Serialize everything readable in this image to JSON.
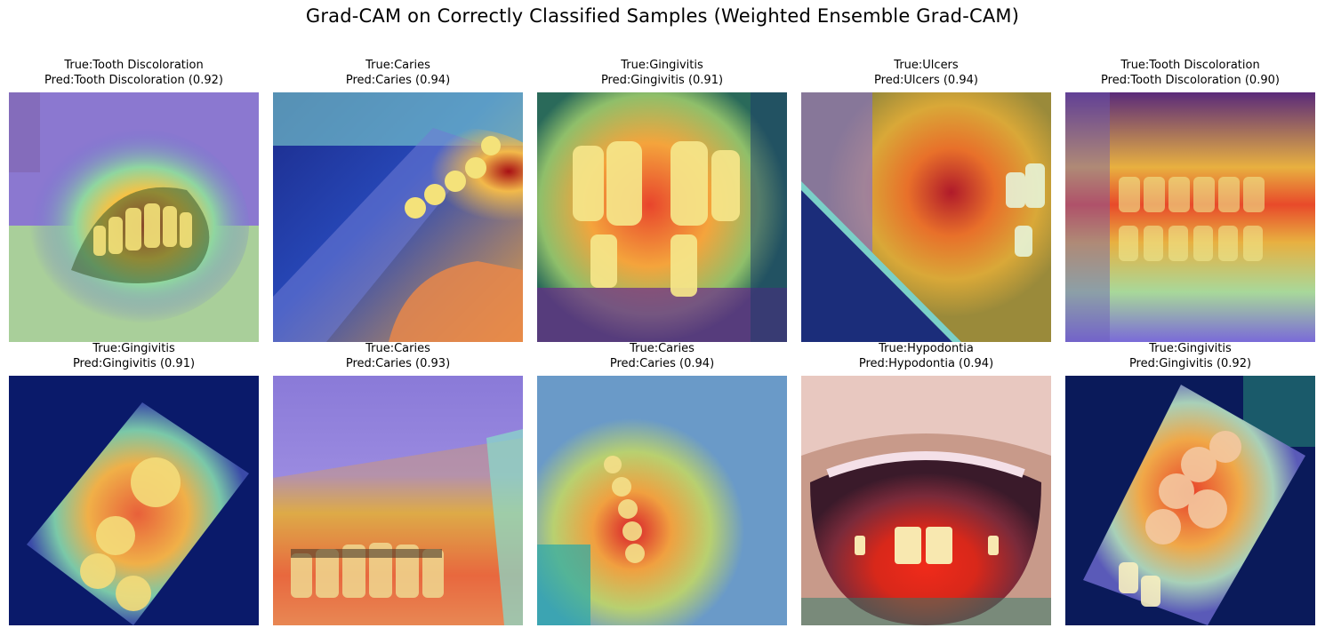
{
  "figure": {
    "title": "Grad-CAM on Correctly Classified Samples (Weighted Ensemble Grad-CAM)"
  },
  "samples": [
    {
      "true_label": "True:Tooth Discoloration",
      "pred_label": "Pred:Tooth Discoloration (0.92)"
    },
    {
      "true_label": "True:Caries",
      "pred_label": "Pred:Caries (0.94)"
    },
    {
      "true_label": "True:Gingivitis",
      "pred_label": "Pred:Gingivitis (0.91)"
    },
    {
      "true_label": "True:Ulcers",
      "pred_label": "Pred:Ulcers (0.94)"
    },
    {
      "true_label": "True:Tooth Discoloration",
      "pred_label": "Pred:Tooth Discoloration (0.90)"
    },
    {
      "true_label": "True:Gingivitis",
      "pred_label": "Pred:Gingivitis (0.91)"
    },
    {
      "true_label": "True:Caries",
      "pred_label": "Pred:Caries (0.93)"
    },
    {
      "true_label": "True:Caries",
      "pred_label": "Pred:Caries (0.94)"
    },
    {
      "true_label": "True:Hypodontia",
      "pred_label": "Pred:Hypodontia (0.94)"
    },
    {
      "true_label": "True:Gingivitis",
      "pred_label": "Pred:Gingivitis (0.92)"
    }
  ]
}
